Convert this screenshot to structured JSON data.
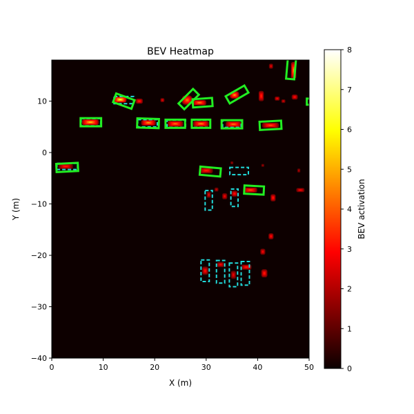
{
  "chart_data": {
    "type": "heatmap",
    "title": "BEV Heatmap",
    "xlabel": "X (m)",
    "ylabel": "Y (m)",
    "xlim": [
      0,
      50
    ],
    "ylim": [
      -40,
      18
    ],
    "xticks": [
      "0",
      "10",
      "20",
      "30",
      "40",
      "50"
    ],
    "yticks": [
      "10",
      "0",
      "−10",
      "−20",
      "−30",
      "−40"
    ],
    "colorbar": {
      "label": "BEV activation",
      "range": [
        0,
        8
      ],
      "ticks": [
        "0",
        "1",
        "2",
        "3",
        "4",
        "5",
        "6",
        "7",
        "8"
      ],
      "colormap": "hot"
    },
    "colors": {
      "background": "#0d0000",
      "predicted_box": "#22ee22",
      "ground_truth_box": "#22dddd"
    },
    "hotspots": [
      {
        "x": 2.7,
        "y": -2.7,
        "v": 3.2,
        "sx": 1.4,
        "sy": 0.5
      },
      {
        "x": 7.5,
        "y": 5.9,
        "v": 5.2,
        "sx": 1.6,
        "sy": 0.55
      },
      {
        "x": 13.3,
        "y": 10.3,
        "v": 6.0,
        "sx": 1.2,
        "sy": 0.55
      },
      {
        "x": 17.0,
        "y": 10.0,
        "v": 3.2,
        "sx": 0.7,
        "sy": 0.5
      },
      {
        "x": 18.8,
        "y": 5.8,
        "v": 4.6,
        "sx": 1.4,
        "sy": 0.55
      },
      {
        "x": 21.5,
        "y": 10.2,
        "v": 2.6,
        "sx": 0.4,
        "sy": 0.4
      },
      {
        "x": 24.0,
        "y": 5.6,
        "v": 4.2,
        "sx": 1.5,
        "sy": 0.55
      },
      {
        "x": 26.3,
        "y": 10.2,
        "v": 4.2,
        "sx": 1.0,
        "sy": 0.9
      },
      {
        "x": 28.7,
        "y": 9.7,
        "v": 4.4,
        "sx": 1.3,
        "sy": 0.5
      },
      {
        "x": 29.0,
        "y": 5.6,
        "v": 4.4,
        "sx": 1.5,
        "sy": 0.55
      },
      {
        "x": 35.3,
        "y": 5.5,
        "v": 4.3,
        "sx": 1.5,
        "sy": 0.55
      },
      {
        "x": 35.5,
        "y": 11.2,
        "v": 4.6,
        "sx": 0.9,
        "sy": 0.7
      },
      {
        "x": 40.7,
        "y": 11.0,
        "v": 3.4,
        "sx": 0.5,
        "sy": 1.0
      },
      {
        "x": 42.5,
        "y": 5.3,
        "v": 3.8,
        "sx": 1.6,
        "sy": 0.5
      },
      {
        "x": 43.8,
        "y": 10.5,
        "v": 2.8,
        "sx": 0.5,
        "sy": 0.4
      },
      {
        "x": 45.0,
        "y": 10.0,
        "v": 2.4,
        "sx": 0.4,
        "sy": 0.35
      },
      {
        "x": 47.0,
        "y": 16.0,
        "v": 4.6,
        "sx": 0.5,
        "sy": 1.6
      },
      {
        "x": 47.2,
        "y": 10.8,
        "v": 3.0,
        "sx": 0.6,
        "sy": 0.5
      },
      {
        "x": 42.6,
        "y": 16.8,
        "v": 2.6,
        "sx": 0.4,
        "sy": 0.5
      },
      {
        "x": 30.0,
        "y": -3.5,
        "v": 3.2,
        "sx": 1.3,
        "sy": 0.55
      },
      {
        "x": 35.0,
        "y": -2.0,
        "v": 1.8,
        "sx": 0.3,
        "sy": 0.3
      },
      {
        "x": 41.0,
        "y": -2.5,
        "v": 1.8,
        "sx": 0.3,
        "sy": 0.3
      },
      {
        "x": 30.5,
        "y": -8.2,
        "v": 2.6,
        "sx": 0.4,
        "sy": 0.6
      },
      {
        "x": 32.0,
        "y": -7.2,
        "v": 2.2,
        "sx": 0.4,
        "sy": 0.4
      },
      {
        "x": 33.6,
        "y": -8.5,
        "v": 2.7,
        "sx": 0.5,
        "sy": 0.6
      },
      {
        "x": 35.5,
        "y": -8.0,
        "v": 3.0,
        "sx": 0.6,
        "sy": 0.6
      },
      {
        "x": 38.6,
        "y": -7.3,
        "v": 3.8,
        "sx": 1.3,
        "sy": 0.5
      },
      {
        "x": 43.0,
        "y": -8.8,
        "v": 3.2,
        "sx": 0.5,
        "sy": 0.7
      },
      {
        "x": 48.3,
        "y": -7.3,
        "v": 2.8,
        "sx": 0.8,
        "sy": 0.4
      },
      {
        "x": 48.0,
        "y": -3.5,
        "v": 2.0,
        "sx": 0.3,
        "sy": 0.4
      },
      {
        "x": 42.6,
        "y": -16.3,
        "v": 3.0,
        "sx": 0.5,
        "sy": 0.6
      },
      {
        "x": 41.0,
        "y": -19.3,
        "v": 2.8,
        "sx": 0.5,
        "sy": 0.6
      },
      {
        "x": 29.8,
        "y": -23.0,
        "v": 3.0,
        "sx": 0.6,
        "sy": 0.8
      },
      {
        "x": 32.8,
        "y": -21.8,
        "v": 2.8,
        "sx": 0.7,
        "sy": 0.5
      },
      {
        "x": 35.3,
        "y": -23.8,
        "v": 2.6,
        "sx": 0.5,
        "sy": 0.8
      },
      {
        "x": 37.8,
        "y": -22.3,
        "v": 3.2,
        "sx": 1.0,
        "sy": 0.5
      },
      {
        "x": 41.3,
        "y": -23.5,
        "v": 3.2,
        "sx": 0.6,
        "sy": 0.8
      }
    ],
    "predicted_boxes": [
      {
        "cx": 3.0,
        "cy": -2.9,
        "l": 4.2,
        "w": 1.6,
        "yaw": 3
      },
      {
        "cx": 7.6,
        "cy": 5.9,
        "l": 4.0,
        "w": 1.6,
        "yaw": 0
      },
      {
        "cx": 14.0,
        "cy": 10.0,
        "l": 3.8,
        "w": 1.8,
        "yaw": -20
      },
      {
        "cx": 18.7,
        "cy": 5.7,
        "l": 4.2,
        "w": 1.8,
        "yaw": -2
      },
      {
        "cx": 24.0,
        "cy": 5.6,
        "l": 3.8,
        "w": 1.6,
        "yaw": 0
      },
      {
        "cx": 26.6,
        "cy": 10.4,
        "l": 4.0,
        "w": 1.6,
        "yaw": 45
      },
      {
        "cx": 29.3,
        "cy": 9.7,
        "l": 3.8,
        "w": 1.6,
        "yaw": 4
      },
      {
        "cx": 29.0,
        "cy": 5.6,
        "l": 3.6,
        "w": 1.6,
        "yaw": 0
      },
      {
        "cx": 35.0,
        "cy": 5.5,
        "l": 4.0,
        "w": 1.6,
        "yaw": 0
      },
      {
        "cx": 36.0,
        "cy": 11.3,
        "l": 4.2,
        "w": 1.6,
        "yaw": 30
      },
      {
        "cx": 42.5,
        "cy": 5.3,
        "l": 4.2,
        "w": 1.6,
        "yaw": 3
      },
      {
        "cx": 46.5,
        "cy": 16.4,
        "l": 4.2,
        "w": 1.6,
        "yaw": 85
      },
      {
        "cx": 30.8,
        "cy": -3.7,
        "l": 4.0,
        "w": 1.6,
        "yaw": -5
      },
      {
        "cx": 39.3,
        "cy": -7.3,
        "l": 3.8,
        "w": 1.6,
        "yaw": -3
      },
      {
        "cx": 50.3,
        "cy": 9.9,
        "l": 1.5,
        "w": 1.2,
        "yaw": 0
      }
    ],
    "ground_truth_boxes": [
      {
        "cx": 7.6,
        "cy": 5.9,
        "l": 3.8,
        "w": 1.4,
        "yaw": 0
      },
      {
        "cx": 14.0,
        "cy": 10.2,
        "l": 3.8,
        "w": 1.4,
        "yaw": 0
      },
      {
        "cx": 18.6,
        "cy": 5.7,
        "l": 3.8,
        "w": 1.4,
        "yaw": 0
      },
      {
        "cx": 24.2,
        "cy": 5.6,
        "l": 3.6,
        "w": 1.4,
        "yaw": 0
      },
      {
        "cx": 29.0,
        "cy": 5.6,
        "l": 3.6,
        "w": 1.4,
        "yaw": 0
      },
      {
        "cx": 35.0,
        "cy": 5.6,
        "l": 3.6,
        "w": 1.4,
        "yaw": 0
      },
      {
        "cx": 3.0,
        "cy": -2.7,
        "l": 4.0,
        "w": 1.2,
        "yaw": 0
      },
      {
        "cx": 36.4,
        "cy": -3.6,
        "l": 3.6,
        "w": 1.4,
        "yaw": 0
      },
      {
        "cx": 30.5,
        "cy": -9.3,
        "l": 1.4,
        "w": 3.8,
        "yaw": 0
      },
      {
        "cx": 35.5,
        "cy": -8.8,
        "l": 1.4,
        "w": 3.4,
        "yaw": 0
      },
      {
        "cx": 29.8,
        "cy": -23.0,
        "l": 1.6,
        "w": 4.2,
        "yaw": 0
      },
      {
        "cx": 32.8,
        "cy": -23.2,
        "l": 1.6,
        "w": 4.4,
        "yaw": 0
      },
      {
        "cx": 35.3,
        "cy": -23.8,
        "l": 1.6,
        "w": 4.6,
        "yaw": 0
      },
      {
        "cx": 37.6,
        "cy": -23.5,
        "l": 1.6,
        "w": 4.6,
        "yaw": 0
      }
    ]
  }
}
